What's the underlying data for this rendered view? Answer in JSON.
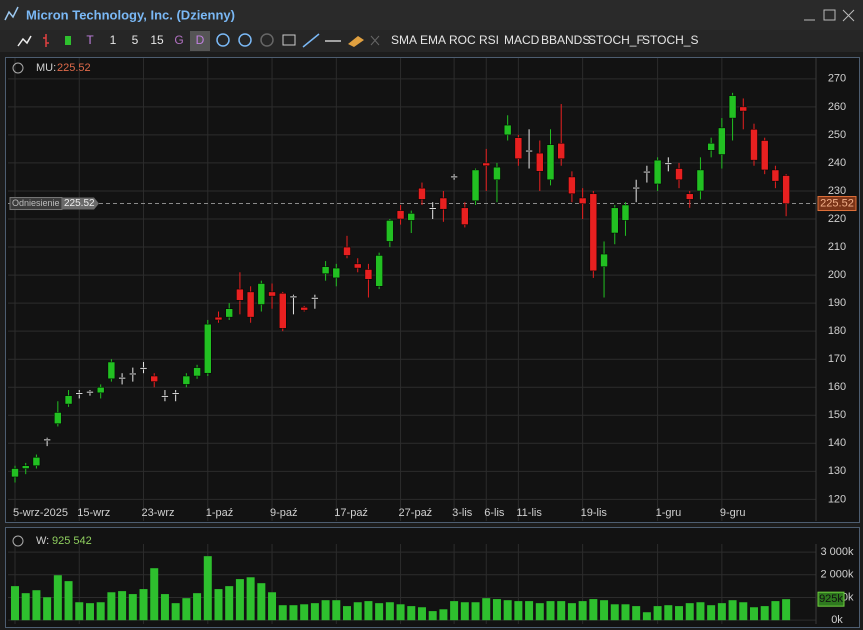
{
  "window": {
    "title": "Micron Technology, Inc. (Dzienny)"
  },
  "toolbar": {
    "items": [
      "T",
      "1",
      "5",
      "15",
      "G",
      "D",
      "SMA",
      "EMA",
      "ROC",
      "RSI",
      "MACD",
      "BBANDS",
      "STOCH_F",
      "STOCH_S"
    ]
  },
  "chart_data": [
    {
      "type": "candlestick",
      "legend_label": "MU:",
      "reference_label": "Odniesienie",
      "reference_value": 225.52,
      "categories": [
        "5-wrz-2025",
        null,
        null,
        null,
        null,
        null,
        "15-wrz",
        null,
        null,
        null,
        null,
        null,
        "23-wrz",
        null,
        null,
        null,
        null,
        null,
        "1-paź",
        null,
        null,
        null,
        null,
        null,
        "9-paź",
        null,
        null,
        null,
        null,
        null,
        "17-paź",
        null,
        null,
        null,
        null,
        null,
        "27-paź",
        null,
        null,
        null,
        null,
        "3-lis",
        null,
        null,
        "6-lis",
        null,
        null,
        "11-lis",
        null,
        null,
        null,
        null,
        null,
        "19-lis",
        null,
        null,
        null,
        null,
        null,
        null,
        "1-gru",
        null,
        null,
        null,
        null,
        null,
        "9-gru",
        null,
        null,
        null,
        null,
        null,
        null
      ],
      "open": [
        128,
        131,
        132,
        141,
        147,
        154,
        157.5,
        158,
        158,
        163,
        163,
        164.5,
        167,
        164,
        157,
        157.5,
        161,
        164,
        165,
        185,
        185,
        195,
        194,
        189.5,
        194,
        193.5,
        192,
        188.5,
        191.5,
        200.5,
        199,
        210,
        204,
        202,
        196,
        212,
        223,
        219.5,
        231,
        223.5,
        227.5,
        235,
        224,
        226.5,
        240,
        234,
        250,
        249,
        244,
        243.5,
        234,
        247,
        235,
        227.5,
        229,
        203,
        215,
        219.5,
        231,
        236.5,
        232.5,
        239.5,
        238,
        229,
        230,
        244.5,
        243,
        256,
        260,
        252,
        248,
        237.5,
        235.5
      ],
      "high": [
        132,
        133,
        136,
        142,
        155,
        159,
        159,
        159,
        161,
        170,
        165,
        167,
        169,
        165,
        159,
        159,
        165,
        168,
        184,
        187,
        190,
        201,
        196,
        198,
        197,
        194,
        193,
        189,
        193,
        205,
        204,
        214,
        206,
        204,
        208,
        220,
        225,
        223,
        233,
        226,
        230,
        236,
        226,
        238,
        245,
        240,
        257,
        250,
        252,
        248,
        252,
        261,
        237,
        231,
        230,
        212,
        225,
        226,
        234,
        239,
        242,
        242,
        240,
        230,
        242,
        249,
        256,
        265,
        263,
        254,
        249,
        239,
        236
      ],
      "low": [
        126,
        129,
        131,
        139,
        146,
        153,
        156,
        157,
        156,
        162,
        161,
        162,
        165,
        160,
        155,
        155,
        160,
        163,
        164,
        183,
        184,
        186,
        183,
        187,
        188,
        180,
        186,
        187,
        188,
        198,
        196,
        206,
        201,
        192,
        195,
        210,
        218,
        215,
        225,
        220,
        219,
        234,
        217,
        225,
        230,
        226,
        248,
        239,
        238,
        230,
        232,
        239,
        226,
        220,
        199,
        192,
        211,
        214,
        226,
        233,
        230,
        237,
        231,
        224,
        227,
        242,
        238,
        248,
        252,
        239,
        236,
        231,
        221
      ],
      "close": [
        131,
        132,
        135,
        141.5,
        151,
        157,
        158,
        158.5,
        160,
        169,
        163.5,
        165,
        167,
        162,
        157,
        158,
        164,
        167,
        182.5,
        184,
        188,
        191,
        185,
        197,
        192.5,
        181,
        192.5,
        187.5,
        192,
        203,
        202.5,
        207,
        202.5,
        198.5,
        207,
        219.5,
        220,
        222,
        227,
        224,
        223.5,
        235.3,
        218,
        237.5,
        239,
        238.5,
        253.5,
        241.5,
        244.5,
        237,
        246.5,
        241.5,
        229,
        225.5,
        201.5,
        207.5,
        224,
        225,
        231.3,
        237,
        241,
        240,
        234,
        227,
        237.5,
        247,
        252.5,
        264,
        258.5,
        241,
        237.5,
        233.5,
        225.52
      ],
      "colors": {
        "up": "#22c022",
        "down": "#e82020",
        "doji": "#e8e8e8"
      },
      "ylim": [
        113,
        276
      ],
      "yticks": [
        120,
        130,
        140,
        150,
        160,
        170,
        180,
        190,
        200,
        210,
        220,
        230,
        240,
        250,
        260,
        270
      ],
      "grid": true
    },
    {
      "type": "bar",
      "legend_label": "W:",
      "readout": "925 542",
      "current_label": "925k",
      "values": [
        1500,
        1190,
        1320,
        1010,
        1980,
        1720,
        790,
        750,
        790,
        1230,
        1280,
        1150,
        1370,
        2290,
        1150,
        750,
        970,
        1190,
        2820,
        1370,
        1500,
        1810,
        1890,
        1630,
        1230,
        660,
        660,
        700,
        750,
        880,
        880,
        620,
        790,
        840,
        750,
        790,
        700,
        620,
        570,
        400,
        480,
        840,
        790,
        790,
        970,
        930,
        880,
        840,
        840,
        750,
        840,
        840,
        750,
        840,
        930,
        880,
        700,
        700,
        620,
        350,
        620,
        660,
        620,
        750,
        790,
        660,
        750,
        880,
        790,
        570,
        620,
        840,
        925.542
      ],
      "color": "#2ec02e",
      "ylim": [
        -80,
        3180
      ],
      "yticks": [
        {
          "value": 0,
          "label": "0k"
        },
        {
          "value": 1000,
          "label": "1 000k"
        },
        {
          "value": 2000,
          "label": "2 000k"
        },
        {
          "value": 3000,
          "label": "3 000k"
        }
      ],
      "grid": true
    }
  ]
}
